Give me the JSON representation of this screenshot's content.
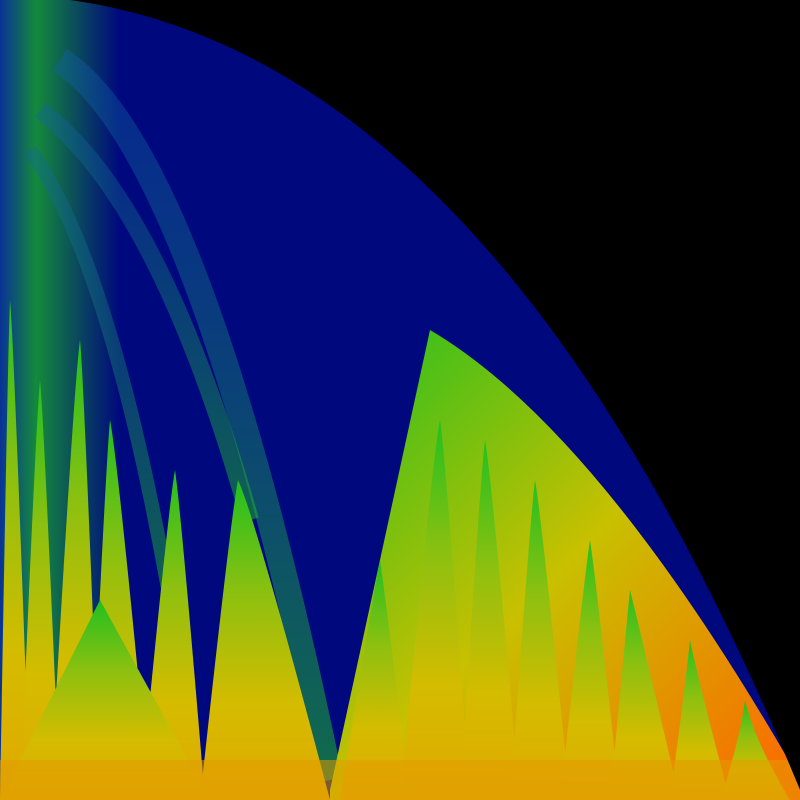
{
  "image": {
    "kind": "fractal-density-plot",
    "background_color": "#000000",
    "palette": {
      "deep": "#00087e",
      "mid": "#0a2bb0",
      "green": "#18b818",
      "yellow": "#d8c000",
      "orange": "#ff6a00"
    }
  }
}
